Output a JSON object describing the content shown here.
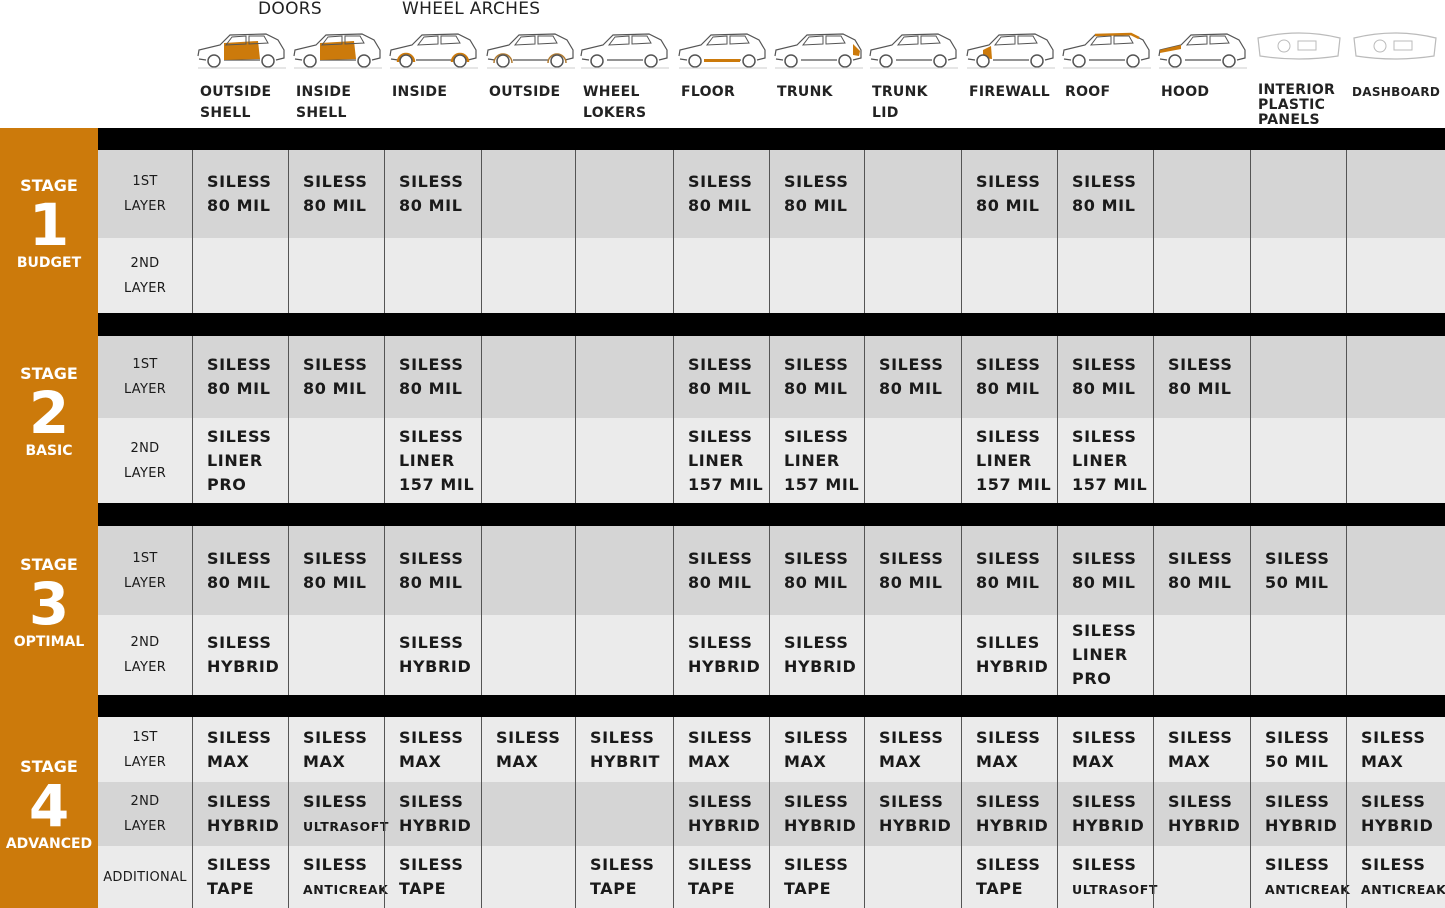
{
  "colors": {
    "accent": "#cc7a0b",
    "row_dark": "#d5d5d5",
    "row_light": "#ebebeb",
    "bar": "#000000"
  },
  "groups": [
    {
      "label": "DOORS"
    },
    {
      "label": "WHEEL ARCHES"
    }
  ],
  "columns": [
    {
      "label": "OUTSIDE\nSHELL",
      "icon": "car-doors-highlight-icon"
    },
    {
      "label": "INSIDE\nSHELL",
      "icon": "car-doors-highlight-icon"
    },
    {
      "label": "INSIDE",
      "icon": "car-wheel-arches-highlight-icon"
    },
    {
      "label": "OUTSIDE",
      "icon": "car-wheel-arches-outline-icon"
    },
    {
      "label": "WHEEL\nLOKERS",
      "icon": "car-icon"
    },
    {
      "label": "FLOOR",
      "icon": "car-floor-highlight-icon"
    },
    {
      "label": "TRUNK",
      "icon": "car-trunk-highlight-icon"
    },
    {
      "label": "TRUNK\nLID",
      "icon": "car-trunk-lid-icon"
    },
    {
      "label": "FIREWALL",
      "icon": "car-firewall-highlight-icon"
    },
    {
      "label": "ROOF",
      "icon": "car-roof-highlight-icon"
    },
    {
      "label": "HOOD",
      "icon": "car-hood-highlight-icon"
    },
    {
      "label": "INTERIOR\nPLASTIC\nPANELS",
      "icon": "car-interior-icon"
    },
    {
      "label": "DASHBOARD",
      "icon": "dashboard-icon"
    }
  ],
  "stages": [
    {
      "word": "STAGE",
      "number": "1",
      "name": "BUDGET",
      "rows": [
        {
          "label": "1ST\nLAYER",
          "cells": [
            "SILESS\n80 MIL",
            "SILESS\n80 MIL",
            "SILESS\n80 MIL",
            "",
            "",
            "SILESS\n80 MIL",
            "SILESS\n80 MIL",
            "",
            "SILESS\n80 MIL",
            "SILESS\n80 MIL",
            "",
            "",
            ""
          ]
        },
        {
          "label": "2ND\nLAYER",
          "cells": [
            "",
            "",
            "",
            "",
            "",
            "",
            "",
            "",
            "",
            "",
            "",
            "",
            ""
          ]
        }
      ]
    },
    {
      "word": "STAGE",
      "number": "2",
      "name": "BASIC",
      "rows": [
        {
          "label": "1ST\nLAYER",
          "cells": [
            "SILESS\n80 MIL",
            "SILESS\n80 MIL",
            "SILESS\n80 MIL",
            "",
            "",
            "SILESS\n80 MIL",
            "SILESS\n80 MIL",
            "SILESS\n80 MIL",
            "SILESS\n80 MIL",
            "SILESS\n80 MIL",
            "SILESS\n80 MIL",
            "",
            ""
          ]
        },
        {
          "label": "2ND\nLAYER",
          "cells": [
            "SILESS\nLINER\nPRO",
            "",
            "SILESS\nLINER\n157 MIL",
            "",
            "",
            "SILESS\nLINER\n157 MIL",
            "SILESS\nLINER\n157 MIL",
            "",
            "SILESS\nLINER\n157 MIL",
            "SILESS\nLINER\n157 MIL",
            "",
            "",
            ""
          ]
        }
      ]
    },
    {
      "word": "STAGE",
      "number": "3",
      "name": "OPTIMAL",
      "rows": [
        {
          "label": "1ST\nLAYER",
          "cells": [
            "SILESS\n80 MIL",
            "SILESS\n80 MIL",
            "SILESS\n80 MIL",
            "",
            "",
            "SILESS\n80 MIL",
            "SILESS\n80 MIL",
            "SILESS\n80 MIL",
            "SILESS\n80 MIL",
            "SILESS\n80 MIL",
            "SILESS\n80 MIL",
            "SILESS\n50 MIL",
            ""
          ]
        },
        {
          "label": "2ND\nLAYER",
          "cells": [
            "SILESS\nHYBRID",
            "",
            "SILESS\nHYBRID",
            "",
            "",
            "SILESS\nHYBRID",
            "SILESS\nHYBRID",
            "",
            "SILLES\nHYBRID",
            "SILESS\nLINER\nPRO",
            "",
            "",
            ""
          ]
        }
      ]
    },
    {
      "word": "STAGE",
      "number": "4",
      "name": "ADVANCED",
      "rows": [
        {
          "label": "1ST\nLAYER",
          "cells": [
            "SILESS\nMAX",
            "SILESS\nMAX",
            "SILESS\nMAX",
            "SILESS\nMAX",
            "SILESS\nHYBRIT",
            "SILESS\nMAX",
            "SILESS\nMAX",
            "SILESS\nMAX",
            "SILESS\nMAX",
            "SILESS\nMAX",
            "SILESS\nMAX",
            "SILESS\n50 MIL",
            "SILESS\nMAX"
          ]
        },
        {
          "label": "2ND\nLAYER",
          "cells": [
            "SILESS\nHYBRID",
            "SILESS\nULTRASOFT",
            "SILESS\nHYBRID",
            "",
            "",
            "SILESS\nHYBRID",
            "SILESS\nHYBRID",
            "SILESS\nHYBRID",
            "SILESS\nHYBRID",
            "SILESS\nHYBRID",
            "SILESS\nHYBRID",
            "SILESS\nHYBRID",
            "SILESS\nHYBRID"
          ]
        },
        {
          "label": "ADDITIONAL",
          "cells": [
            "SILESS\nTAPE",
            "SILESS\nANTICREAK",
            "SILESS\nTAPE",
            "",
            "SILESS\nTAPE",
            "SILESS\nTAPE",
            "SILESS\nTAPE",
            "",
            "SILESS\nTAPE",
            "SILESS\nULTRASOFT",
            "",
            "SILESS\nANTICREAK",
            "SILESS\nANTICREAK"
          ]
        }
      ]
    }
  ]
}
